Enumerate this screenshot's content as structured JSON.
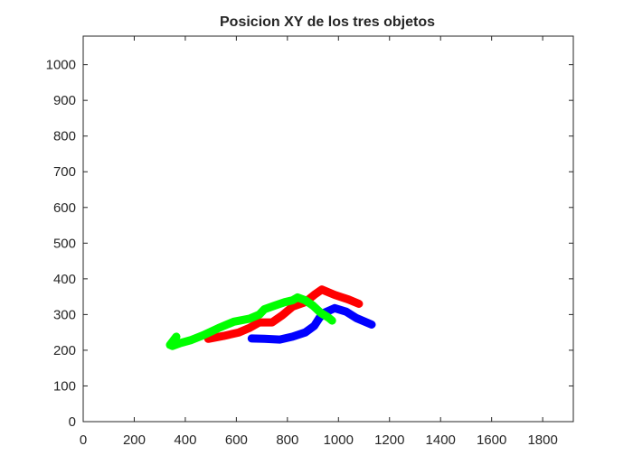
{
  "chart_data": {
    "type": "line",
    "title": "Posicion XY de los tres objetos",
    "xlabel": "",
    "ylabel": "",
    "xlim": [
      0,
      1920
    ],
    "ylim": [
      0,
      1080
    ],
    "xticks": [
      0,
      200,
      400,
      600,
      800,
      1000,
      1200,
      1400,
      1600,
      1800
    ],
    "yticks": [
      0,
      100,
      200,
      300,
      400,
      500,
      600,
      700,
      800,
      900,
      1000
    ],
    "grid": false,
    "legend": "none",
    "series": [
      {
        "color": "#ff0000",
        "points": [
          [
            490,
            232
          ],
          [
            550,
            240
          ],
          [
            610,
            250
          ],
          [
            650,
            262
          ],
          [
            690,
            278
          ],
          [
            740,
            278
          ],
          [
            780,
            298
          ],
          [
            820,
            322
          ],
          [
            870,
            335
          ],
          [
            905,
            355
          ],
          [
            935,
            370
          ],
          [
            985,
            355
          ],
          [
            1040,
            342
          ],
          [
            1080,
            330
          ]
        ]
      },
      {
        "color": "#0000ff",
        "points": [
          [
            660,
            233
          ],
          [
            710,
            232
          ],
          [
            770,
            230
          ],
          [
            820,
            238
          ],
          [
            870,
            250
          ],
          [
            905,
            268
          ],
          [
            925,
            290
          ],
          [
            945,
            305
          ],
          [
            985,
            318
          ],
          [
            1030,
            308
          ],
          [
            1070,
            290
          ],
          [
            1130,
            272
          ]
        ]
      },
      {
        "color": "#00ff00",
        "points": [
          [
            365,
            238
          ],
          [
            340,
            215
          ],
          [
            350,
            212
          ],
          [
            380,
            220
          ],
          [
            420,
            228
          ],
          [
            470,
            242
          ],
          [
            530,
            262
          ],
          [
            590,
            280
          ],
          [
            650,
            288
          ],
          [
            690,
            300
          ],
          [
            710,
            315
          ],
          [
            750,
            325
          ],
          [
            790,
            335
          ],
          [
            820,
            340
          ],
          [
            840,
            348
          ],
          [
            870,
            340
          ],
          [
            900,
            325
          ],
          [
            930,
            305
          ],
          [
            960,
            292
          ],
          [
            975,
            283
          ]
        ]
      }
    ]
  }
}
